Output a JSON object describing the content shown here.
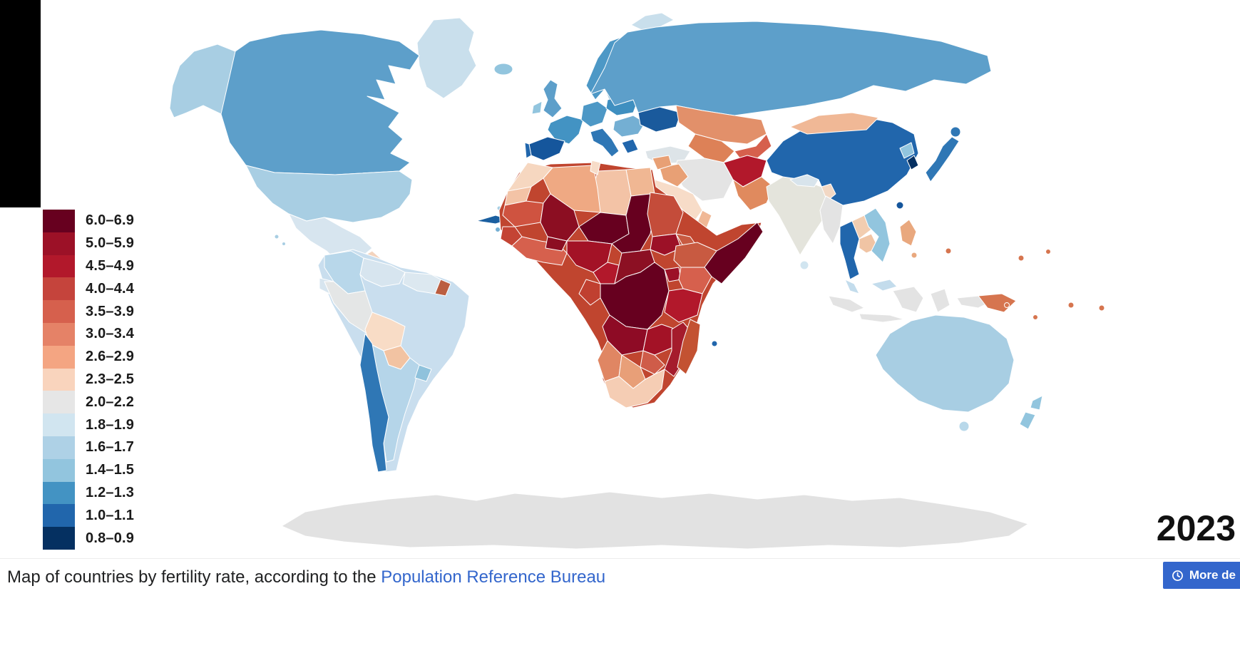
{
  "ui": {
    "black_bar_color": "#000000",
    "link_color": "#3366cc",
    "button_color": "#3366cc"
  },
  "year_badge": "2023",
  "caption": {
    "prefix": "Map of countries by fertility rate, according to the ",
    "link_text": "Population Reference Bureau"
  },
  "more_button": {
    "label": "More de",
    "icon": "clock-icon"
  },
  "legend": {
    "items": [
      {
        "range": "6.0–6.9",
        "color": "#67001f"
      },
      {
        "range": "5.0–5.9",
        "color": "#9c1127"
      },
      {
        "range": "4.5–4.9",
        "color": "#b2182b"
      },
      {
        "range": "4.0–4.4",
        "color": "#c5443c"
      },
      {
        "range": "3.5–3.9",
        "color": "#d6604d"
      },
      {
        "range": "3.0–3.4",
        "color": "#e58267"
      },
      {
        "range": "2.6–2.9",
        "color": "#f4a582"
      },
      {
        "range": "2.3–2.5",
        "color": "#f9d4bd"
      },
      {
        "range": "2.0–2.2",
        "color": "#e6e6e6"
      },
      {
        "range": "1.8–1.9",
        "color": "#d1e5f0"
      },
      {
        "range": "1.6–1.7",
        "color": "#aed1e6"
      },
      {
        "range": "1.4–1.5",
        "color": "#92c5de"
      },
      {
        "range": "1.2–1.3",
        "color": "#4393c3"
      },
      {
        "range": "1.0–1.1",
        "color": "#2166ac"
      },
      {
        "range": "0.8–0.9",
        "color": "#053061"
      }
    ]
  },
  "map": {
    "region_colors": {
      "antarctica": "#e2e2e2",
      "greenland": "#c9dfec",
      "svalbard": "#c9dfec",
      "alaska": "#a8cee3",
      "canada": "#5d9fca",
      "usa": "#a8cee3",
      "mexico": "#d7e5ef",
      "central_america": "#f3d3bd",
      "cuba": "#1b5fa0",
      "hispaniola": "#e09a70",
      "jamaica": "#74afd3",
      "bahamas": "#a8cee3",
      "hawaii": "#a8cee3",
      "colombia": "#b8d7ea",
      "venezuela": "#d7e5ef",
      "guyanas": "#dce8f0",
      "french_guiana": "#bb5e40",
      "ecuador": "#d7e5ef",
      "peru": "#e4e6e6",
      "brazil": "#c9deee",
      "bolivia": "#f8dcc6",
      "paraguay": "#f2c3a2",
      "chile": "#2f77b5",
      "argentina": "#b5d5e9",
      "uruguay": "#8fc2dc",
      "iceland": "#92c5de",
      "norway": "#4d98c6",
      "sweden": "#74afd3",
      "finland": "#74afd3",
      "uk": "#5d9fca",
      "ireland": "#92c5de",
      "france": "#4393c3",
      "spain": "#15569c",
      "portugal": "#2166ac",
      "germany": "#4d98c6",
      "italy": "#2f77b5",
      "poland": "#3f8fc0",
      "balkans": "#74afd3",
      "greece": "#2166ac",
      "belarus": "#4393c3",
      "ukraine": "#1a5a9c",
      "turkey": "#dde4e8",
      "russia": "#5d9fca",
      "kazakhstan": "#e2906a",
      "uzbekistan": "#dd8157",
      "kyrgyz_tajik": "#d6604d",
      "iran": "#e4e4e4",
      "afghanistan": "#b2182b",
      "pakistan": "#e08a5e",
      "iraq": "#e8a075",
      "syria": "#e8a075",
      "saudi_arabia": "#f7dcc8",
      "yemen": "#d6604d",
      "oman": "#f0b896",
      "egypt": "#f0b793",
      "libya": "#f3c3a6",
      "algeria": "#efa983",
      "morocco": "#f6d7c0",
      "tunisia": "#f7dcc8",
      "western_sahara": "#f3c3a6",
      "africa_base": "#c0452f",
      "mauritania": "#cf5340",
      "mali": "#8c0e22",
      "niger": "#67001f",
      "chad": "#67001f",
      "sudan": "#c44c3a",
      "south_sudan": "#9c1127",
      "eritrea": "#c85a41",
      "ethiopia": "#c85a41",
      "somalia": "#67001f",
      "senegal": "#c44434",
      "west_coast": "#d6604d",
      "burkina": "#8c0e22",
      "nigeria": "#a31226",
      "cameroon": "#b2182b",
      "car": "#8c1023",
      "drc": "#67001f",
      "congo_gabon": "#c04030",
      "uganda": "#9c1127",
      "kenya": "#d6604d",
      "tanzania": "#b2182b",
      "angola": "#8e0b25",
      "zambia": "#a31226",
      "mozambique": "#a51c2c",
      "zimbabwe": "#cf5c49",
      "namibia": "#e08663",
      "botswana": "#e89f78",
      "south_africa": "#f5cdb4",
      "madagascar": "#c35232",
      "mauritius": "#2166ac",
      "india": "#e4e4dc",
      "sri_lanka": "#d1e5f0",
      "nepal": "#d8e4ec",
      "bangladesh": "#f2d8c4",
      "china": "#2166ac",
      "mongolia": "#f0b896",
      "myanmar": "#e3e3e3",
      "thailand": "#2166ac",
      "laos": "#f2cdb0",
      "cambodia": "#f0c4a4",
      "vietnam": "#92c5de",
      "malaysia": "#c3dcec",
      "indonesia": "#e3e3e3",
      "png": "#d6754f",
      "philippines": "#e9a87e",
      "taiwan": "#15569c",
      "south_korea": "#053061",
      "north_korea": "#92c5de",
      "japan": "#2f77b5",
      "australia": "#a8cee3",
      "tasmania": "#b8d8ea",
      "new_zealand": "#92c5de",
      "pacific_dot": "#d6754f"
    }
  }
}
